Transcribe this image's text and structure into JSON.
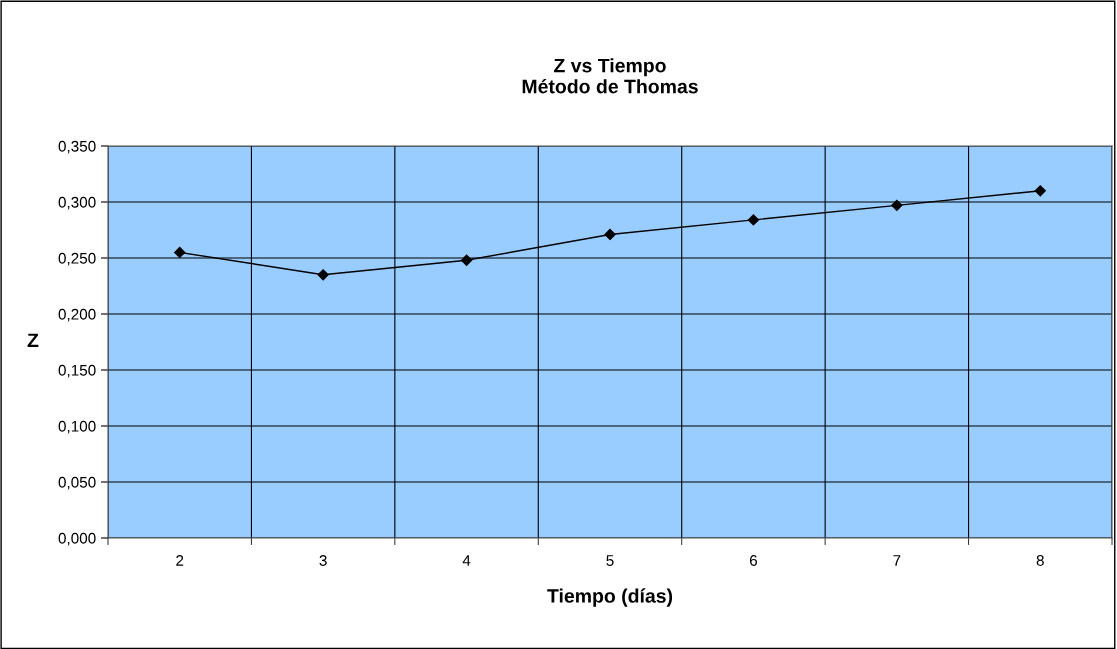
{
  "chart_data": {
    "type": "line",
    "title": "Z vs Tiempo\nMétodo de Thomas",
    "xlabel": "Tiempo (días)",
    "ylabel": "Z",
    "categories": [
      "2",
      "3",
      "4",
      "5",
      "6",
      "7",
      "8"
    ],
    "series": [
      {
        "color": "#000000",
        "values": [
          0.255,
          0.235,
          0.248,
          0.271,
          0.284,
          0.297,
          0.31
        ]
      }
    ],
    "ylim": [
      0,
      0.35
    ],
    "yticks": [
      {
        "value": 0,
        "label": "0,000"
      },
      {
        "value": 0.05,
        "label": "0,050"
      },
      {
        "value": 0.1,
        "label": "0,100"
      },
      {
        "value": 0.15,
        "label": "0,150"
      },
      {
        "value": 0.2,
        "label": "0,200"
      },
      {
        "value": 0.25,
        "label": "0,250"
      },
      {
        "value": 0.3,
        "label": "0,300"
      },
      {
        "value": 0.35,
        "label": "0,350"
      }
    ],
    "grid": true,
    "marker": "diamond",
    "line_style": "solid"
  }
}
